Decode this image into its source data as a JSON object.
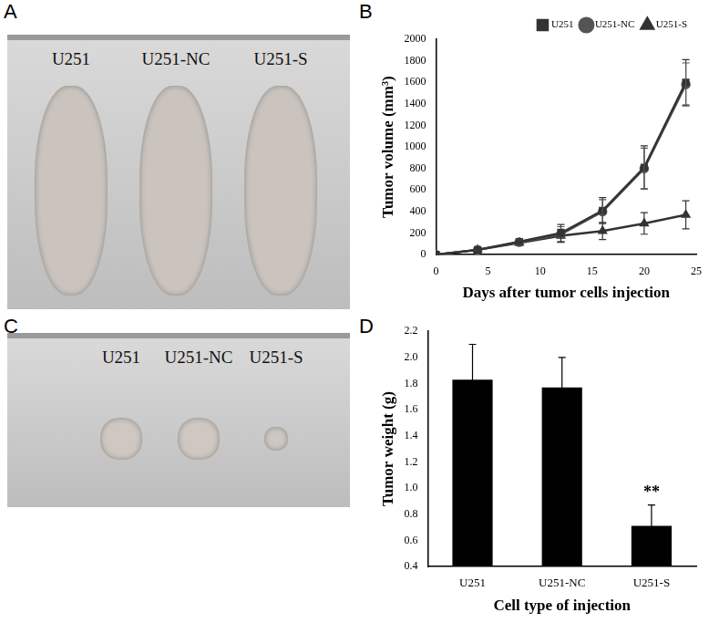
{
  "chart_data": [
    {
      "panel": "B",
      "type": "line",
      "x_label": "Days after tumor cells injection",
      "y_label": "Tumor volume (mm³)",
      "x": [
        0,
        4,
        8,
        12,
        16,
        20,
        24
      ],
      "series": [
        {
          "name": "U251",
          "color": "#333333",
          "marker": "square",
          "values": [
            0,
            45,
            120,
            200,
            410,
            810,
            1600
          ],
          "errors": [
            0,
            10,
            20,
            80,
            120,
            200,
            210
          ]
        },
        {
          "name": "U251-NC",
          "color": "#555555",
          "marker": "circle",
          "values": [
            0,
            45,
            115,
            190,
            400,
            800,
            1580
          ],
          "errors": [
            0,
            10,
            20,
            70,
            110,
            190,
            200
          ]
        },
        {
          "name": "U251-S",
          "color": "#333333",
          "marker": "triangle",
          "values": [
            0,
            45,
            110,
            175,
            220,
            290,
            370
          ],
          "errors": [
            0,
            10,
            20,
            60,
            80,
            100,
            130
          ]
        }
      ],
      "xlim": [
        0,
        25
      ],
      "xticks": [
        0,
        5,
        10,
        15,
        20,
        25
      ],
      "ylim": [
        0,
        2000
      ],
      "yticks": [
        0,
        200,
        400,
        600,
        800,
        1000,
        1200,
        1400,
        1600,
        1800,
        2000
      ],
      "grid": false,
      "legend": "upper right"
    },
    {
      "panel": "D",
      "type": "bar",
      "x_label": "Cell type of injection",
      "y_label": "Tumor weight (g)",
      "categories": [
        "U251",
        "U251-NC",
        "U251-S"
      ],
      "values": [
        1.83,
        1.77,
        0.71
      ],
      "errors": [
        0.27,
        0.23,
        0.16
      ],
      "color": "#000000",
      "ylim": [
        0.4,
        2.2
      ],
      "yticks": [
        0.4,
        0.6,
        0.8,
        {
          "value": 1,
          "label": "1.0"
        },
        1.2,
        1.4,
        1.6,
        1.8,
        {
          "value": 2,
          "label": "2.0"
        },
        2.2
      ],
      "grid": false,
      "annotations": [
        {
          "text": "**",
          "category": "U251-S"
        }
      ]
    }
  ],
  "photos": [
    {
      "panel": "A",
      "labels": [
        "U251",
        "U251-NC",
        "U251-S"
      ]
    },
    {
      "panel": "C",
      "labels": [
        "U251",
        "U251-NC",
        "U251-S"
      ]
    }
  ]
}
